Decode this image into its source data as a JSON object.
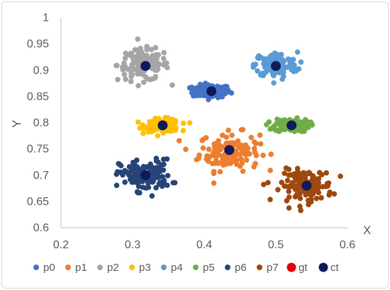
{
  "chart_data": {
    "type": "scatter",
    "title": "",
    "xlabel": "X",
    "ylabel": "Y",
    "xlim": [
      0.2,
      0.6
    ],
    "ylim": [
      0.6,
      1.0
    ],
    "x_ticks": [
      "0.2",
      "0.3",
      "0.4",
      "0.5",
      "0.6"
    ],
    "y_ticks": [
      "0.6",
      "0.65",
      "0.7",
      "0.75",
      "0.8",
      "0.85",
      "0.9",
      "0.95",
      "1"
    ],
    "grid": false,
    "legend_position": "bottom",
    "clusters": [
      {
        "name": "p0",
        "color": "#4472c4",
        "center": [
          0.41,
          0.86
        ],
        "spread": [
          0.022,
          0.01
        ],
        "n": 140
      },
      {
        "name": "p1",
        "color": "#ed7d31",
        "center": [
          0.435,
          0.745
        ],
        "spread": [
          0.035,
          0.03
        ],
        "n": 140
      },
      {
        "name": "p2",
        "color": "#a5a5a5",
        "center": [
          0.315,
          0.91
        ],
        "spread": [
          0.03,
          0.025
        ],
        "n": 130
      },
      {
        "name": "p3",
        "color": "#ffc000",
        "center": [
          0.342,
          0.795
        ],
        "spread": [
          0.02,
          0.01
        ],
        "n": 140
      },
      {
        "name": "p4",
        "color": "#5b9bd5",
        "center": [
          0.5,
          0.91
        ],
        "spread": [
          0.025,
          0.02
        ],
        "n": 130
      },
      {
        "name": "p5",
        "color": "#70ad47",
        "center": [
          0.522,
          0.795
        ],
        "spread": [
          0.02,
          0.01
        ],
        "n": 140
      },
      {
        "name": "p6",
        "color": "#264478",
        "center": [
          0.318,
          0.7
        ],
        "spread": [
          0.03,
          0.025
        ],
        "n": 130
      },
      {
        "name": "p7",
        "color": "#9e480e",
        "center": [
          0.543,
          0.68
        ],
        "spread": [
          0.03,
          0.025
        ],
        "n": 130
      }
    ],
    "series": [
      {
        "name": "p0",
        "color": "#4472c4"
      },
      {
        "name": "p1",
        "color": "#ed7d31"
      },
      {
        "name": "p2",
        "color": "#a5a5a5"
      },
      {
        "name": "p3",
        "color": "#ffc000"
      },
      {
        "name": "p4",
        "color": "#5b9bd5"
      },
      {
        "name": "p5",
        "color": "#70ad47"
      },
      {
        "name": "p6",
        "color": "#264478"
      },
      {
        "name": "p7",
        "color": "#9e480e"
      },
      {
        "name": "gt",
        "color": "#e00000",
        "points": [
          [
            0.41,
            0.86
          ],
          [
            0.435,
            0.748
          ],
          [
            0.318,
            0.908
          ],
          [
            0.342,
            0.795
          ],
          [
            0.5,
            0.908
          ],
          [
            0.522,
            0.795
          ],
          [
            0.318,
            0.7
          ],
          [
            0.543,
            0.68
          ]
        ]
      },
      {
        "name": "ct",
        "color": "#0d1a5c",
        "points": [
          [
            0.41,
            0.86
          ],
          [
            0.435,
            0.748
          ],
          [
            0.318,
            0.908
          ],
          [
            0.342,
            0.795
          ],
          [
            0.5,
            0.908
          ],
          [
            0.522,
            0.795
          ],
          [
            0.318,
            0.7
          ],
          [
            0.543,
            0.68
          ]
        ]
      }
    ]
  }
}
